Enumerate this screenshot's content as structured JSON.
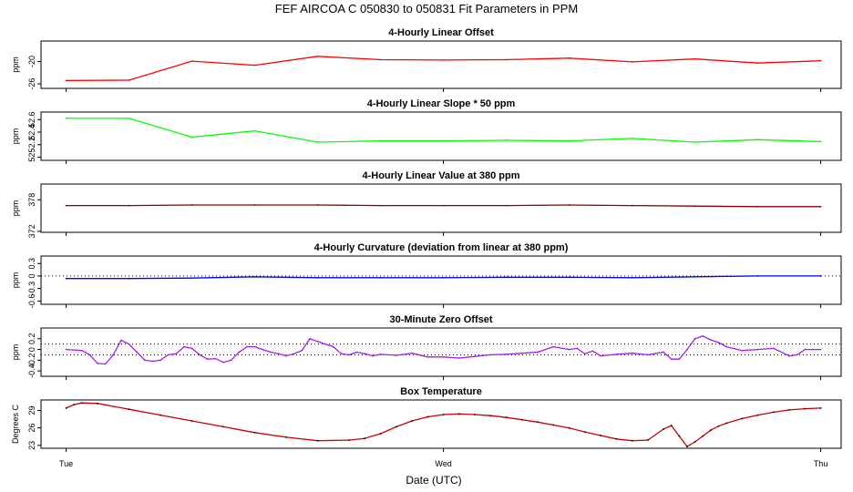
{
  "title": "FEF   AIRCOA C   050830 to 050831   Fit Parameters in PPM",
  "xlabel": "Date (UTC)",
  "x_ticks": [
    {
      "t": 0,
      "label": "Tue"
    },
    {
      "t": 24,
      "label": "Wed"
    },
    {
      "t": 48,
      "label": "Thu"
    }
  ],
  "x_range_hours": [
    -1.6,
    49.3
  ],
  "chart_data": [
    {
      "type": "line",
      "title": "4-Hourly Linear Offset",
      "ylabel": "ppm",
      "yticks": [
        -26,
        -20
      ],
      "ylim": [
        -27.2,
        -14.5
      ],
      "color": "#ff0000",
      "series": [
        {
          "x": [
            0,
            4,
            8,
            12,
            16,
            20,
            24,
            28,
            32,
            36,
            40,
            44,
            48
          ],
          "values": [
            -25.1,
            -25.0,
            -19.9,
            -21.0,
            -18.6,
            -19.5,
            -19.6,
            -19.5,
            -19.1,
            -20.1,
            -19.3,
            -20.4,
            -19.8
          ]
        }
      ]
    },
    {
      "type": "line",
      "title": "4-Hourly Linear Slope * 50 ppm",
      "ylabel": "ppm",
      "yticks": [
        52.0,
        52.2,
        52.4,
        52.6
      ],
      "ylim": [
        51.95,
        52.72
      ],
      "color": "#00ff00",
      "series": [
        {
          "x": [
            0,
            4,
            8,
            12,
            16,
            20,
            24,
            28,
            32,
            36,
            40,
            44,
            48
          ],
          "values": [
            52.62,
            52.62,
            52.32,
            52.42,
            52.24,
            52.26,
            52.26,
            52.27,
            52.26,
            52.3,
            52.24,
            52.28,
            52.25
          ]
        }
      ]
    },
    {
      "type": "line",
      "title": "4-Hourly Linear Value at 380 ppm",
      "ylabel": "ppm",
      "yticks": [
        372,
        378
      ],
      "ylim": [
        371.8,
        381.0
      ],
      "color": "#8b0000",
      "series": [
        {
          "x": [
            0,
            4,
            8,
            12,
            16,
            20,
            24,
            28,
            32,
            36,
            40,
            44,
            48
          ],
          "values": [
            376.9,
            376.9,
            377.0,
            377.0,
            377.0,
            376.9,
            376.9,
            376.9,
            377.0,
            376.9,
            376.8,
            376.7,
            376.7
          ]
        }
      ]
    },
    {
      "type": "line",
      "title": "4-Hourly Curvature (deviation from linear at 380 ppm)",
      "ylabel": "ppm",
      "yticks": [
        -0.6,
        -0.3,
        0.0,
        0.3
      ],
      "ylim": [
        -0.68,
        0.48
      ],
      "color": "#0000ff",
      "reference_lines": [
        0.0
      ],
      "series": [
        {
          "x": [
            0,
            4,
            8,
            12,
            16,
            20,
            24,
            28,
            32,
            36,
            40,
            44,
            48
          ],
          "values": [
            -0.06,
            -0.06,
            -0.05,
            -0.02,
            -0.04,
            -0.04,
            -0.04,
            -0.03,
            -0.03,
            -0.04,
            -0.02,
            0.0,
            0.0
          ]
        }
      ]
    },
    {
      "type": "line",
      "title": "30-Minute Zero Offset",
      "ylabel": "ppm",
      "yticks": [
        -0.4,
        -0.2,
        0.0,
        0.2
      ],
      "ylim": [
        -0.5,
        0.4
      ],
      "color": "#a020f0",
      "reference_lines": [
        0.1,
        -0.1
      ],
      "series": [
        {
          "x": [
            0,
            1,
            1.5,
            2,
            2.5,
            3,
            3.5,
            4,
            4.5,
            5,
            5.5,
            6,
            6.5,
            7,
            7.5,
            8,
            8.5,
            9,
            9.5,
            10,
            10.5,
            11,
            11.5,
            12,
            12.5,
            13,
            13.5,
            14,
            14.5,
            15,
            15.5,
            16,
            16.5,
            17,
            17.5,
            18,
            18.5,
            19,
            19.5,
            20,
            21,
            22,
            23,
            24,
            25,
            26,
            27,
            28,
            29,
            30,
            31,
            32,
            32.5,
            33,
            33.5,
            34,
            35,
            36,
            37,
            38,
            38.5,
            39,
            39.5,
            40,
            40.5,
            41,
            41.5,
            42,
            43,
            44,
            45,
            46,
            46.5,
            47,
            47.5,
            48
          ],
          "values": [
            0.0,
            -0.02,
            -0.1,
            -0.26,
            -0.27,
            -0.1,
            0.17,
            0.1,
            -0.05,
            -0.2,
            -0.22,
            -0.2,
            -0.1,
            -0.08,
            0.05,
            0.02,
            -0.1,
            -0.18,
            -0.17,
            -0.24,
            -0.2,
            -0.05,
            0.05,
            0.05,
            0.0,
            -0.05,
            -0.08,
            -0.12,
            -0.08,
            -0.02,
            0.2,
            0.15,
            0.1,
            0.05,
            -0.08,
            -0.1,
            -0.05,
            -0.08,
            -0.12,
            -0.09,
            -0.11,
            -0.07,
            -0.14,
            -0.14,
            -0.16,
            -0.13,
            -0.1,
            -0.09,
            -0.07,
            -0.05,
            0.05,
            0.0,
            0.02,
            -0.08,
            -0.03,
            -0.12,
            -0.09,
            -0.07,
            -0.1,
            -0.05,
            -0.18,
            -0.18,
            0.0,
            0.2,
            0.25,
            0.18,
            0.13,
            0.05,
            -0.02,
            0.0,
            0.02,
            -0.12,
            -0.1,
            0.0,
            0.0,
            0.0
          ]
        }
      ]
    },
    {
      "type": "line",
      "title": "Box Temperature",
      "ylabel": "Degrees C",
      "yticks": [
        23,
        26,
        29
      ],
      "ylim": [
        22.5,
        30.8
      ],
      "color": "#cc0000",
      "point_color": "#000000",
      "series": [
        {
          "x": [
            0,
            0.5,
            1,
            2,
            4,
            6,
            8,
            10,
            12,
            14,
            16,
            18,
            19,
            20,
            21,
            22,
            23,
            24,
            25,
            26,
            27,
            28,
            29,
            30,
            31,
            32,
            33,
            34,
            35,
            36,
            37,
            38,
            38.5,
            39,
            39.5,
            40,
            40.5,
            41,
            41.5,
            42,
            43,
            44,
            45,
            46,
            47,
            48
          ],
          "values": [
            29.4,
            30.0,
            30.3,
            30.2,
            29.2,
            28.2,
            27.2,
            26.2,
            25.2,
            24.4,
            23.8,
            23.9,
            24.2,
            25.0,
            26.2,
            27.2,
            27.9,
            28.3,
            28.4,
            28.3,
            28.1,
            27.8,
            27.4,
            27.0,
            26.5,
            26.0,
            25.3,
            24.7,
            24.1,
            23.8,
            23.9,
            25.8,
            26.4,
            24.6,
            22.8,
            23.6,
            24.6,
            25.6,
            26.3,
            26.8,
            27.6,
            28.2,
            28.7,
            29.1,
            29.3,
            29.4
          ]
        }
      ]
    }
  ]
}
